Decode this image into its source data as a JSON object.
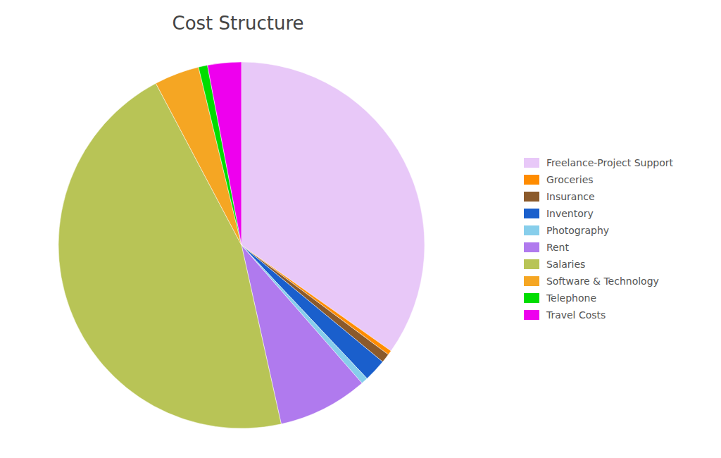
{
  "chart_data": {
    "type": "pie",
    "title": "Cost Structure",
    "categories": [
      "Freelance-Project Support",
      "Groceries",
      "Insurance",
      "Inventory",
      "Photography",
      "Rent",
      "Salaries",
      "Software & Technology",
      "Telephone",
      "Travel Costs"
    ],
    "values": [
      35,
      0.4,
      0.8,
      2.0,
      0.6,
      8.0,
      46,
      4.0,
      0.8,
      3.0
    ],
    "colors": [
      "#e8c8f8",
      "#ff8c00",
      "#8b5a2b",
      "#1a5fcc",
      "#87ceeb",
      "#b07aee",
      "#b8c456",
      "#f5a623",
      "#00dd00",
      "#ee00ee"
    ],
    "legend": "right"
  }
}
